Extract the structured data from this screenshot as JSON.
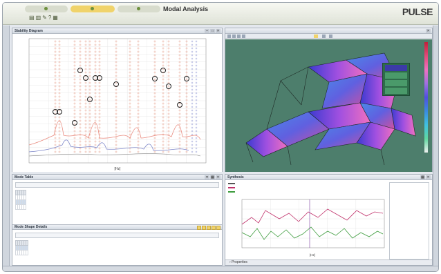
{
  "titlebar": {
    "tabs": [
      "",
      "",
      ""
    ],
    "title": "Modal Analysis",
    "subtitle": "",
    "logo": "PULSE",
    "logo_suffix": ""
  },
  "sidebar_left_label": "",
  "sidebar_right_label": "",
  "stability_panel": {
    "title": "Stability Diagram",
    "y_ticks": [
      "",
      "",
      "",
      "",
      "",
      "",
      "",
      "",
      "",
      "",
      "",
      "",
      "",
      "",
      "",
      "",
      ""
    ],
    "x_ticks": [
      "",
      "",
      "",
      "",
      "",
      "",
      "",
      "",
      "",
      ""
    ],
    "x_label": "[Hz]",
    "right_axis_label": ""
  },
  "mode_panel": {
    "title": "",
    "legend_items": [
      "",
      "",
      "",
      "",
      ""
    ]
  },
  "mode_table": {
    "title": "Mode Table",
    "drop_hint": "",
    "columns": [
      "",
      "",
      "",
      "",
      ""
    ],
    "rows": [
      [
        "",
        "",
        "",
        "",
        ""
      ],
      [
        "",
        "",
        "",
        "",
        ""
      ],
      [
        "",
        "",
        "",
        "",
        ""
      ]
    ]
  },
  "mode_shape": {
    "title": "Mode Shape Details",
    "drop_hint": "",
    "buttons": [
      "",
      "",
      "",
      "",
      ""
    ],
    "columns": [
      "",
      "",
      "",
      "",
      "",
      ""
    ],
    "rows": [
      [
        "",
        "",
        "",
        "",
        "",
        ""
      ],
      [
        "",
        "",
        "",
        "",
        "",
        ""
      ]
    ]
  },
  "synthesis": {
    "title": "Synthesis",
    "legend": [
      "",
      "",
      ""
    ],
    "cursor_title": "",
    "cursor_lines": [
      "",
      ""
    ],
    "y_ticks": [
      "",
      "",
      "",
      "",
      "",
      ""
    ],
    "x_ticks": [
      "",
      "",
      "",
      "",
      "",
      ""
    ],
    "x_label": "[Hz]",
    "properties": "Properties"
  },
  "statusbar": {
    "left": "",
    "right": ""
  },
  "colors": {
    "accent": "#f0d36b",
    "model_bg": "#4d7e6c"
  }
}
